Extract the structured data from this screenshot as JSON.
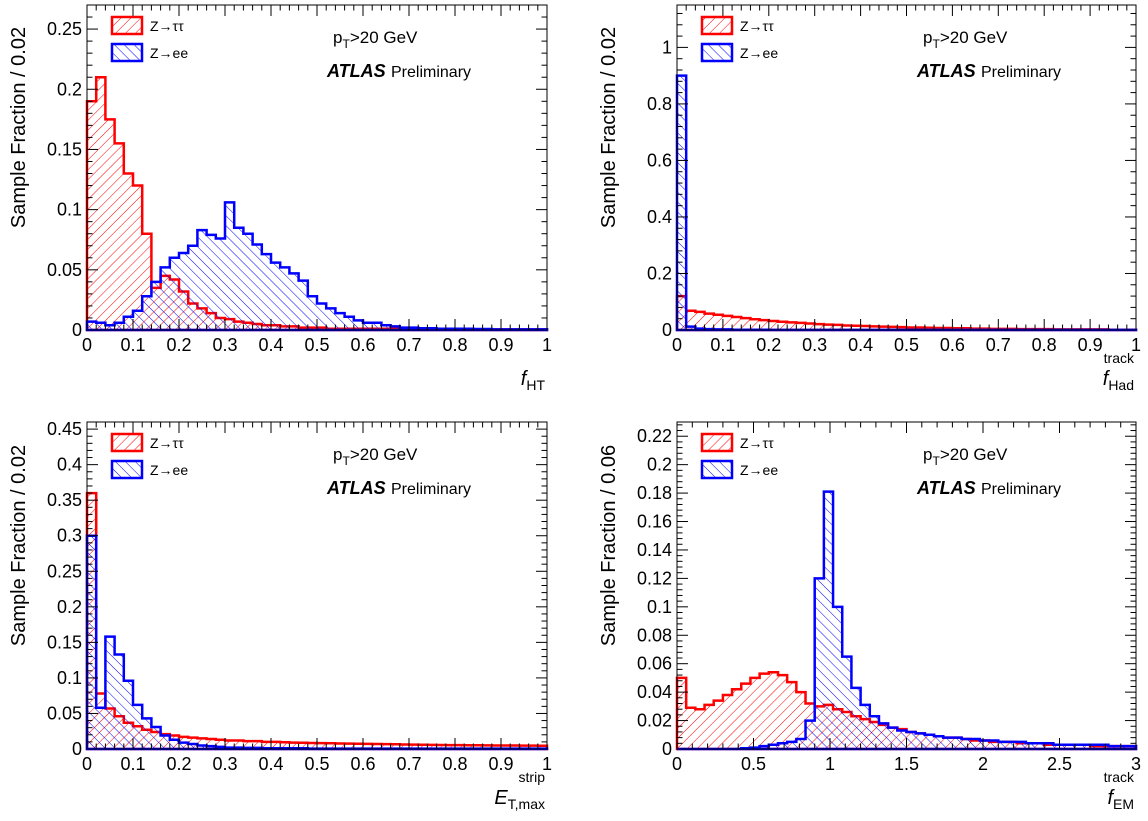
{
  "figure": {
    "legend_tautau": "Z→ττ",
    "legend_ee": "Z→ee",
    "cut_label_p": "p",
    "cut_label_sub": "T",
    "cut_label_rest": ">20 GeV",
    "atlas": "ATLAS",
    "preliminary": "Preliminary",
    "colors": {
      "tautau": "#ff0000",
      "ee": "#0000ff"
    }
  },
  "chart_data": [
    {
      "type": "histogram",
      "ylabel": "Sample Fraction / 0.02",
      "xlabel_main": "f",
      "xlabel_sub": "HT",
      "xlabel_sup": "",
      "xlim": [
        0,
        1
      ],
      "ylim": [
        0,
        0.27
      ],
      "xticks": [
        0,
        0.1,
        0.2,
        0.3,
        0.4,
        0.5,
        0.6,
        0.7,
        0.8,
        0.9,
        1
      ],
      "xtick_labels": [
        "0",
        "0.1",
        "0.2",
        "0.3",
        "0.4",
        "0.5",
        "0.6",
        "0.7",
        "0.8",
        "0.9",
        "1"
      ],
      "yticks": [
        0,
        0.05,
        0.1,
        0.15,
        0.2,
        0.25
      ],
      "ytick_labels": [
        "0",
        "0.05",
        "0.1",
        "0.15",
        "0.2",
        "0.25"
      ],
      "bin_width": 0.02,
      "series": [
        {
          "name": "Z→ττ",
          "color": "#ff0000",
          "values": [
            0.19,
            0.21,
            0.175,
            0.155,
            0.13,
            0.12,
            0.08,
            0.035,
            0.045,
            0.042,
            0.032,
            0.022,
            0.018,
            0.014,
            0.01,
            0.009,
            0.007,
            0.006,
            0.005,
            0.004,
            0.004,
            0.003,
            0.003,
            0.002,
            0.002,
            0.002,
            0.001,
            0.001,
            0.001,
            0.001,
            0.001,
            0.001,
            0.001,
            0.001,
            0.001,
            0.001,
            0.001,
            0.001,
            0.001,
            0.001,
            0.0005,
            0.0005,
            0.0005,
            0.0005,
            0.0005,
            0.0005,
            0.0005,
            0.0005,
            0.0005,
            0.0005
          ]
        },
        {
          "name": "Z→ee",
          "color": "#0000ff",
          "values": [
            0.007,
            0.006,
            0.004,
            0.006,
            0.011,
            0.016,
            0.028,
            0.04,
            0.052,
            0.06,
            0.064,
            0.07,
            0.083,
            0.079,
            0.076,
            0.106,
            0.085,
            0.08,
            0.071,
            0.063,
            0.056,
            0.052,
            0.047,
            0.041,
            0.028,
            0.022,
            0.018,
            0.014,
            0.011,
            0.008,
            0.006,
            0.006,
            0.004,
            0.003,
            0.002,
            0.002,
            0.0015,
            0.0015,
            0.001,
            0.001,
            0.001,
            0.001,
            0.0008,
            0.0008,
            0.0005,
            0.0005,
            0.0005,
            0.0005,
            0.0005,
            0.0005
          ]
        }
      ]
    },
    {
      "type": "histogram",
      "ylabel": "Sample Fraction / 0.02",
      "xlabel_main": "f",
      "xlabel_sub": "Had",
      "xlabel_sup": "track",
      "xlim": [
        0,
        1
      ],
      "ylim": [
        0,
        1.15
      ],
      "xticks": [
        0,
        0.1,
        0.2,
        0.3,
        0.4,
        0.5,
        0.6,
        0.7,
        0.8,
        0.9,
        1
      ],
      "xtick_labels": [
        "0",
        "0.1",
        "0.2",
        "0.3",
        "0.4",
        "0.5",
        "0.6",
        "0.7",
        "0.8",
        "0.9",
        "1"
      ],
      "yticks": [
        0,
        0.2,
        0.4,
        0.6,
        0.8,
        1
      ],
      "ytick_labels": [
        "0",
        "0.2",
        "0.4",
        "0.6",
        "0.8",
        "1"
      ],
      "bin_width": 0.02,
      "series": [
        {
          "name": "Z→ττ",
          "color": "#ff0000",
          "values": [
            0.12,
            0.068,
            0.064,
            0.058,
            0.054,
            0.05,
            0.046,
            0.042,
            0.038,
            0.035,
            0.032,
            0.029,
            0.027,
            0.025,
            0.023,
            0.021,
            0.019,
            0.018,
            0.016,
            0.015,
            0.014,
            0.013,
            0.012,
            0.011,
            0.01,
            0.009,
            0.009,
            0.008,
            0.007,
            0.007,
            0.006,
            0.006,
            0.005,
            0.005,
            0.004,
            0.004,
            0.004,
            0.003,
            0.003,
            0.003,
            0.003,
            0.002,
            0.002,
            0.002,
            0.002,
            0.002,
            0.002,
            0.001,
            0.001,
            0.001
          ]
        },
        {
          "name": "Z→ee",
          "color": "#0000ff",
          "values": [
            0.9,
            0.012,
            0.005,
            0.003,
            0.002,
            0.002,
            0.001,
            0.001,
            0.001,
            0.001,
            0.0005,
            0.0005,
            0.0005,
            0.0005,
            0.0005,
            0.0005,
            0.0005,
            0.0005,
            0.0005,
            0.0005,
            0.0005,
            0.0005,
            0.0005,
            0.0005,
            0.0005,
            0.0005,
            0.0005,
            0.0005,
            0.0005,
            0.0005,
            0.0005,
            0.0005,
            0.0005,
            0.0005,
            0.0005,
            0.0005,
            0.0005,
            0.0005,
            0.0005,
            0.0005,
            0.0005,
            0.0005,
            0.0005,
            0.0005,
            0.0005,
            0.0005,
            0.0005,
            0.0005,
            0.0005,
            0.0005
          ]
        }
      ]
    },
    {
      "type": "histogram",
      "ylabel": "Sample Fraction / 0.02",
      "xlabel_main": "E",
      "xlabel_sub": "T,max",
      "xlabel_sup": "strip",
      "xlim": [
        0,
        1
      ],
      "ylim": [
        0,
        0.46
      ],
      "xticks": [
        0,
        0.1,
        0.2,
        0.3,
        0.4,
        0.5,
        0.6,
        0.7,
        0.8,
        0.9,
        1
      ],
      "xtick_labels": [
        "0",
        "0.1",
        "0.2",
        "0.3",
        "0.4",
        "0.5",
        "0.6",
        "0.7",
        "0.8",
        "0.9",
        "1"
      ],
      "yticks": [
        0,
        0.05,
        0.1,
        0.15,
        0.2,
        0.25,
        0.3,
        0.35,
        0.4,
        0.45
      ],
      "ytick_labels": [
        "0",
        "0.05",
        "0.1",
        "0.15",
        "0.2",
        "0.25",
        "0.3",
        "0.35",
        "0.4",
        "0.45"
      ],
      "bin_width": 0.02,
      "series": [
        {
          "name": "Z→ττ",
          "color": "#ff0000",
          "values": [
            0.36,
            0.078,
            0.057,
            0.046,
            0.037,
            0.032,
            0.027,
            0.024,
            0.021,
            0.019,
            0.017,
            0.016,
            0.015,
            0.014,
            0.013,
            0.012,
            0.012,
            0.011,
            0.011,
            0.01,
            0.01,
            0.0095,
            0.009,
            0.0088,
            0.0085,
            0.0082,
            0.008,
            0.0078,
            0.0076,
            0.0074,
            0.0072,
            0.007,
            0.0068,
            0.0066,
            0.0064,
            0.0062,
            0.006,
            0.0058,
            0.0056,
            0.0055,
            0.0054,
            0.0053,
            0.0052,
            0.0051,
            0.005,
            0.005,
            0.0049,
            0.0048,
            0.0047,
            0.0046
          ]
        },
        {
          "name": "Z→ee",
          "color": "#0000ff",
          "values": [
            0.3,
            0.058,
            0.158,
            0.133,
            0.096,
            0.062,
            0.043,
            0.031,
            0.019,
            0.013,
            0.009,
            0.007,
            0.005,
            0.004,
            0.003,
            0.002,
            0.002,
            0.0015,
            0.0015,
            0.001,
            0.001,
            0.001,
            0.001,
            0.001,
            0.0005,
            0.0005,
            0.0005,
            0.0005,
            0.0005,
            0.0005,
            0.0005,
            0.0005,
            0.0005,
            0.0005,
            0.0005,
            0.0005,
            0.0005,
            0.0005,
            0.0005,
            0.0005,
            0.0005,
            0.0005,
            0.0005,
            0.0005,
            0.0005,
            0.0005,
            0.0005,
            0.0005,
            0.0005,
            0.0005
          ]
        }
      ]
    },
    {
      "type": "histogram",
      "ylabel": "Sample Fraction / 0.06",
      "xlabel_main": "f",
      "xlabel_sub": "EM",
      "xlabel_sup": "track",
      "xlim": [
        0,
        3
      ],
      "ylim": [
        0,
        0.23
      ],
      "xticks": [
        0,
        0.5,
        1,
        1.5,
        2,
        2.5,
        3
      ],
      "xtick_labels": [
        "0",
        "0.5",
        "1",
        "1.5",
        "2",
        "2.5",
        "3"
      ],
      "yticks": [
        0,
        0.02,
        0.04,
        0.06,
        0.08,
        0.1,
        0.12,
        0.14,
        0.16,
        0.18,
        0.2,
        0.22
      ],
      "ytick_labels": [
        "0",
        "0.02",
        "0.04",
        "0.06",
        "0.08",
        "0.1",
        "0.12",
        "0.14",
        "0.16",
        "0.18",
        "0.2",
        "0.22"
      ],
      "bin_width": 0.06,
      "series": [
        {
          "name": "Z→ττ",
          "color": "#ff0000",
          "values": [
            0.05,
            0.029,
            0.028,
            0.031,
            0.034,
            0.038,
            0.042,
            0.046,
            0.05,
            0.053,
            0.054,
            0.052,
            0.047,
            0.04,
            0.032,
            0.03,
            0.031,
            0.028,
            0.026,
            0.023,
            0.021,
            0.019,
            0.017,
            0.015,
            0.014,
            0.012,
            0.011,
            0.01,
            0.009,
            0.008,
            0.008,
            0.007,
            0.006,
            0.006,
            0.005,
            0.005,
            0.005,
            0.004,
            0.004,
            0.004,
            0.003,
            0.003,
            0.003,
            0.003,
            0.003,
            0.002,
            0.002,
            0.002,
            0.002,
            0.002
          ]
        },
        {
          "name": "Z→ee",
          "color": "#0000ff",
          "values": [
            0,
            0,
            0,
            0,
            0,
            0,
            0,
            0.0005,
            0.001,
            0.002,
            0.003,
            0.004,
            0.005,
            0.007,
            0.02,
            0.12,
            0.181,
            0.1,
            0.065,
            0.043,
            0.031,
            0.023,
            0.018,
            0.015,
            0.013,
            0.012,
            0.011,
            0.01,
            0.009,
            0.008,
            0.008,
            0.007,
            0.007,
            0.006,
            0.006,
            0.005,
            0.005,
            0.005,
            0.004,
            0.004,
            0.004,
            0.003,
            0.003,
            0.003,
            0.003,
            0.003,
            0.003,
            0.002,
            0.002,
            0.002
          ]
        }
      ]
    }
  ]
}
